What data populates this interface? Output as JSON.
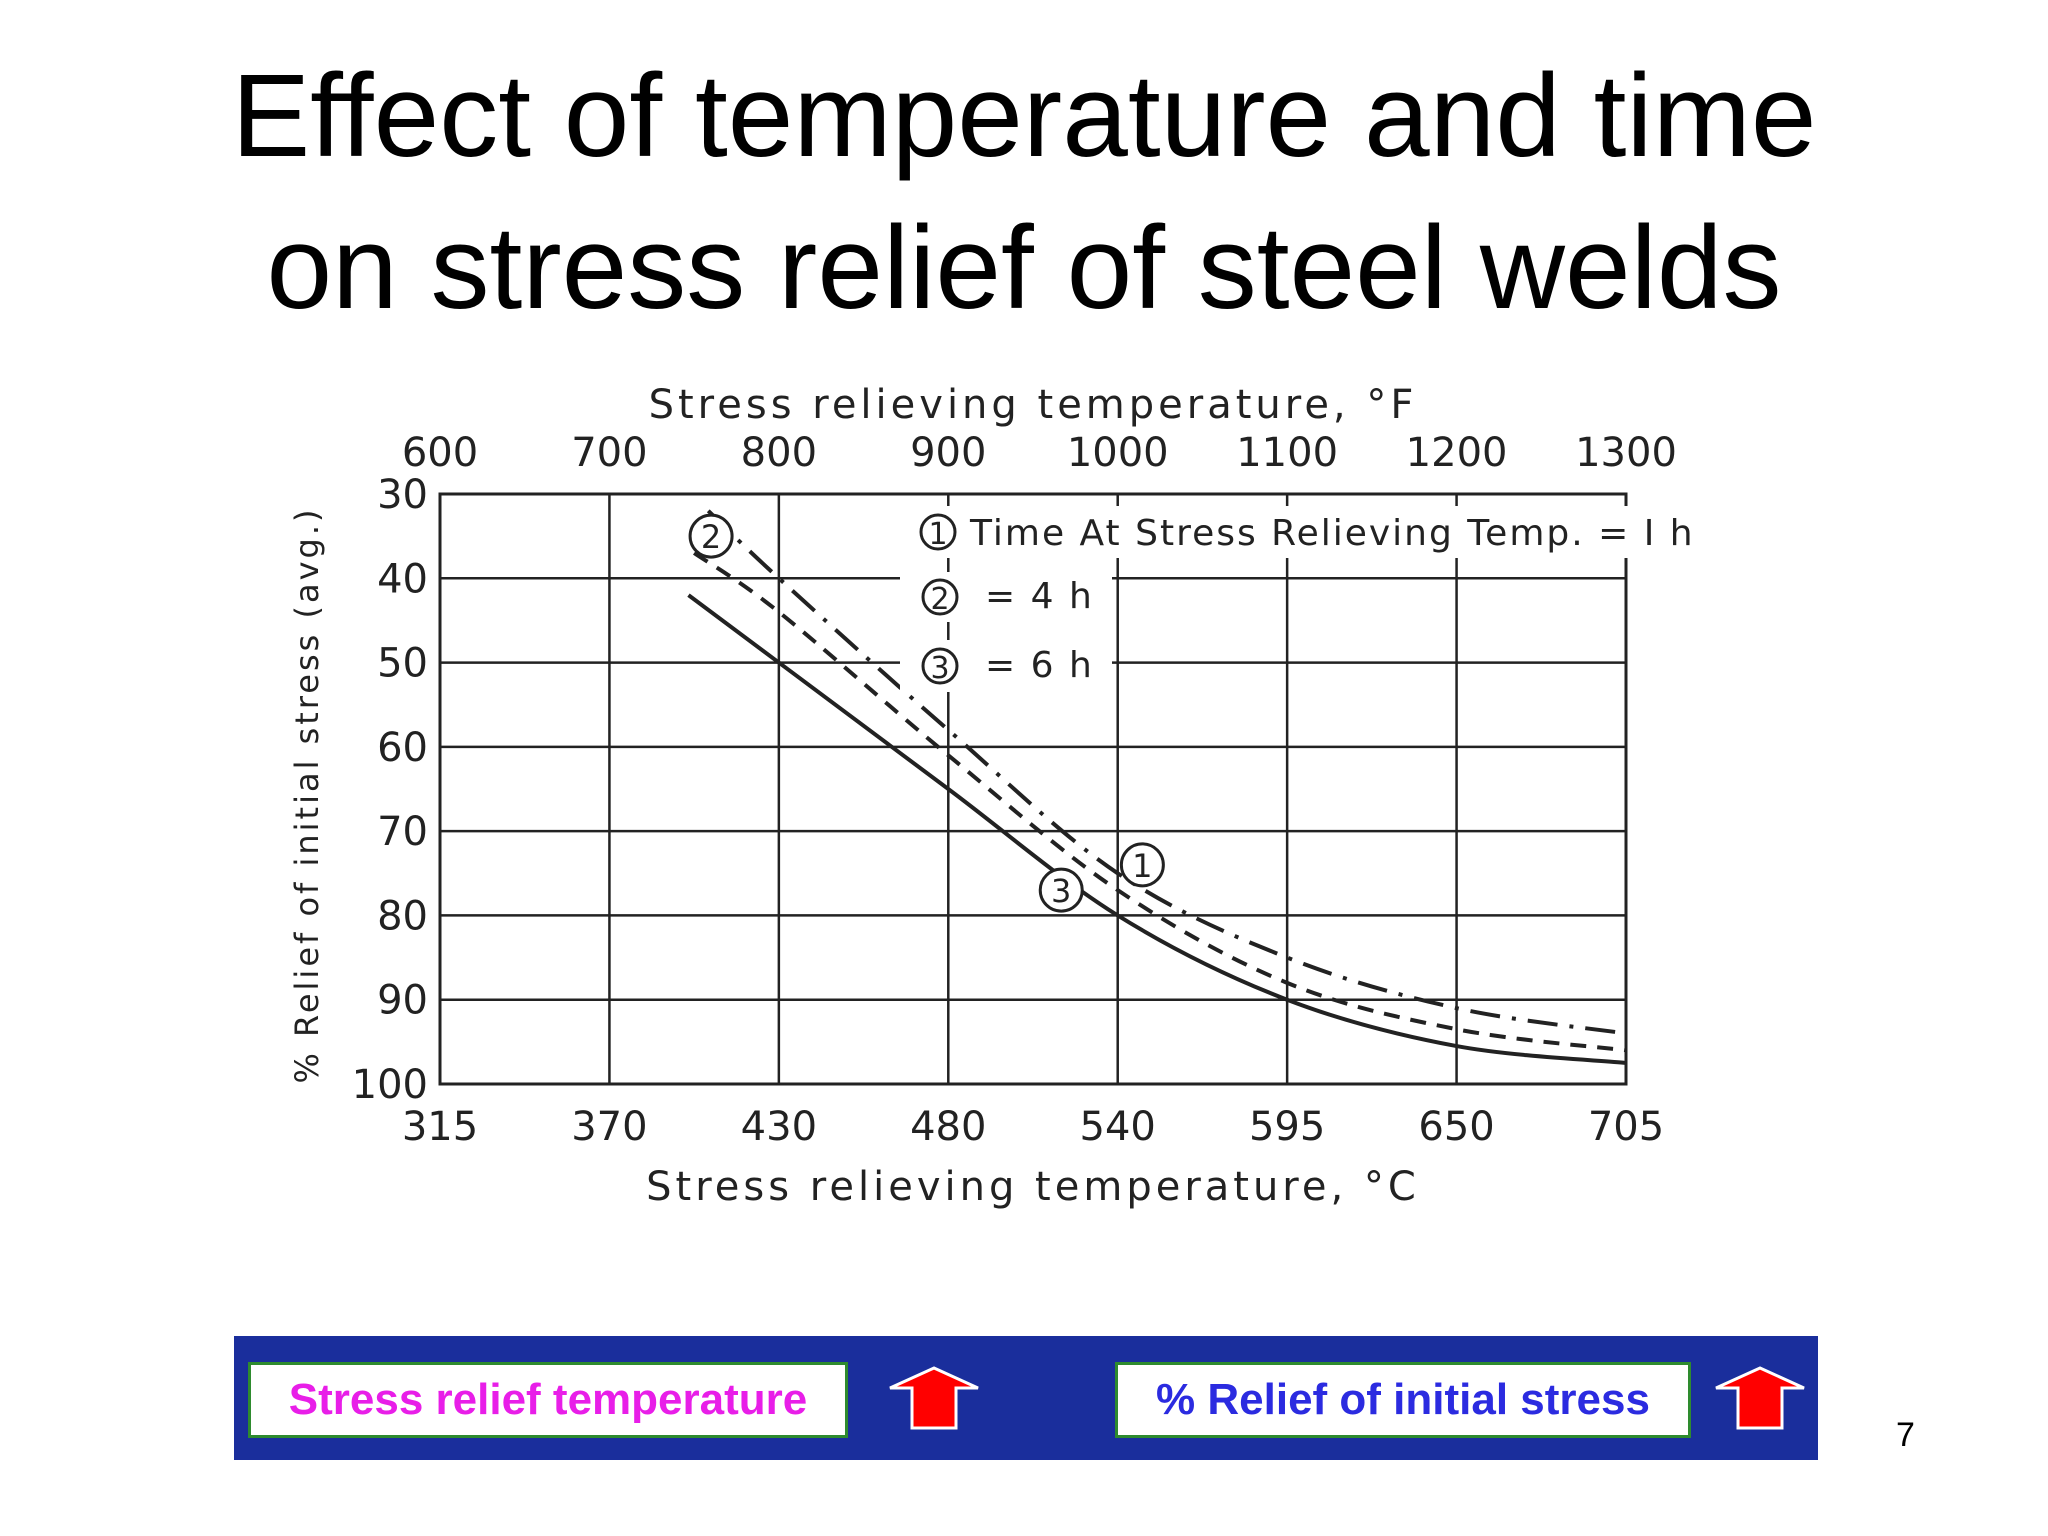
{
  "slide": {
    "title_line1": "Effect of temperature and time",
    "title_line2": "on stress relief of steel welds",
    "page_number": "7"
  },
  "chart_data": {
    "type": "line",
    "xlabel": "Stress relieving temperature, °C",
    "x2label": "Stress relieving temperature, °F",
    "ylabel": "% Relief of initial stress (avg.)",
    "x_ticks": [
      "315",
      "370",
      "430",
      "480",
      "540",
      "595",
      "650",
      "705"
    ],
    "x2_ticks": [
      "600",
      "700",
      "800",
      "900",
      "1000",
      "1100",
      "1200",
      "1300"
    ],
    "y_ticks": [
      "30",
      "40",
      "50",
      "60",
      "70",
      "80",
      "90",
      "100"
    ],
    "xlim": [
      315,
      705
    ],
    "ylim": [
      30,
      100
    ],
    "y_inverted": true,
    "grid": true,
    "legend": {
      "line1": "Time At Stress Relieving Temp. = I h",
      "line2": "= 4 h",
      "line3": "= 6 h"
    },
    "series": [
      {
        "marker": "1",
        "style": "dash-dot",
        "x": [
          405,
          430,
          480,
          540,
          595,
          650,
          705
        ],
        "y": [
          32,
          40,
          58,
          75,
          85,
          91,
          94
        ]
      },
      {
        "marker": "2",
        "style": "dashed",
        "x": [
          400,
          430,
          480,
          540,
          595,
          650,
          705
        ],
        "y": [
          37,
          44,
          61,
          77,
          88,
          93.5,
          96
        ]
      },
      {
        "marker": "3",
        "style": "solid",
        "x": [
          398,
          430,
          480,
          540,
          595,
          650,
          705
        ],
        "y": [
          42,
          50,
          65,
          80,
          90,
          95.5,
          97.5
        ]
      }
    ],
    "colors": {
      "ink": "#222222"
    }
  },
  "banner": {
    "left_label": "Stress relief temperature",
    "right_label": "% Relief of initial stress",
    "arrow_icon": "red-up-arrow-icon",
    "background": "#1a2e9c",
    "arrow_color": "#ff0000"
  }
}
